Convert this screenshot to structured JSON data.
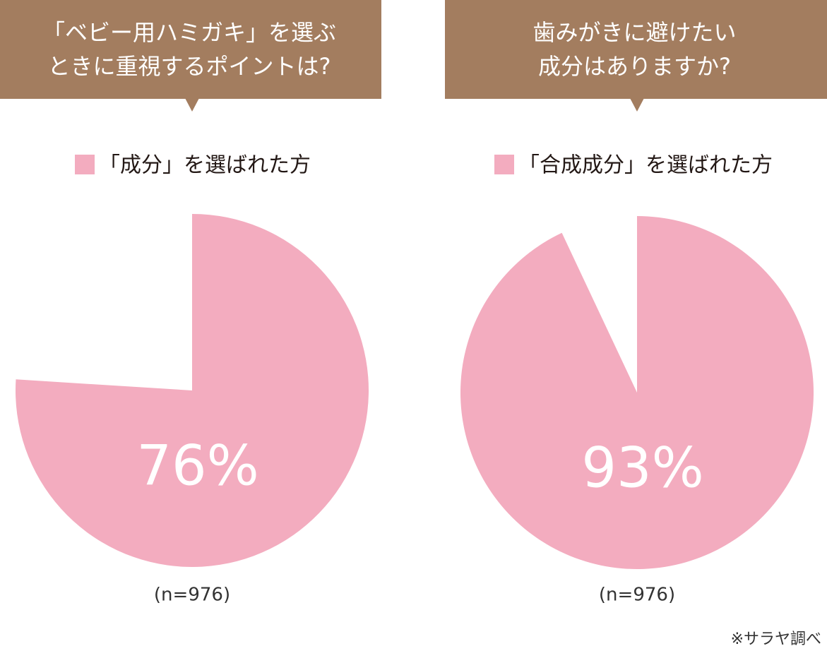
{
  "chart_data": [
    {
      "type": "pie",
      "title": [
        "「ベビー用ハミガキ」を選ぶ",
        "ときに重視するポイントは?"
      ],
      "categories": [
        "「成分」を選ばれた方"
      ],
      "values": [
        76
      ],
      "value_labels": [
        "76%"
      ],
      "color": "#f3acbf",
      "note": "(n=976)"
    },
    {
      "type": "pie",
      "title": [
        "歯みがきに避けたい",
        "成分はありますか?"
      ],
      "categories": [
        "「合成成分」を選ばれた方"
      ],
      "values": [
        93
      ],
      "value_labels": [
        "93%"
      ],
      "color": "#f3acbf",
      "note": "(n=976)"
    }
  ],
  "source": "※サラヤ調べ"
}
